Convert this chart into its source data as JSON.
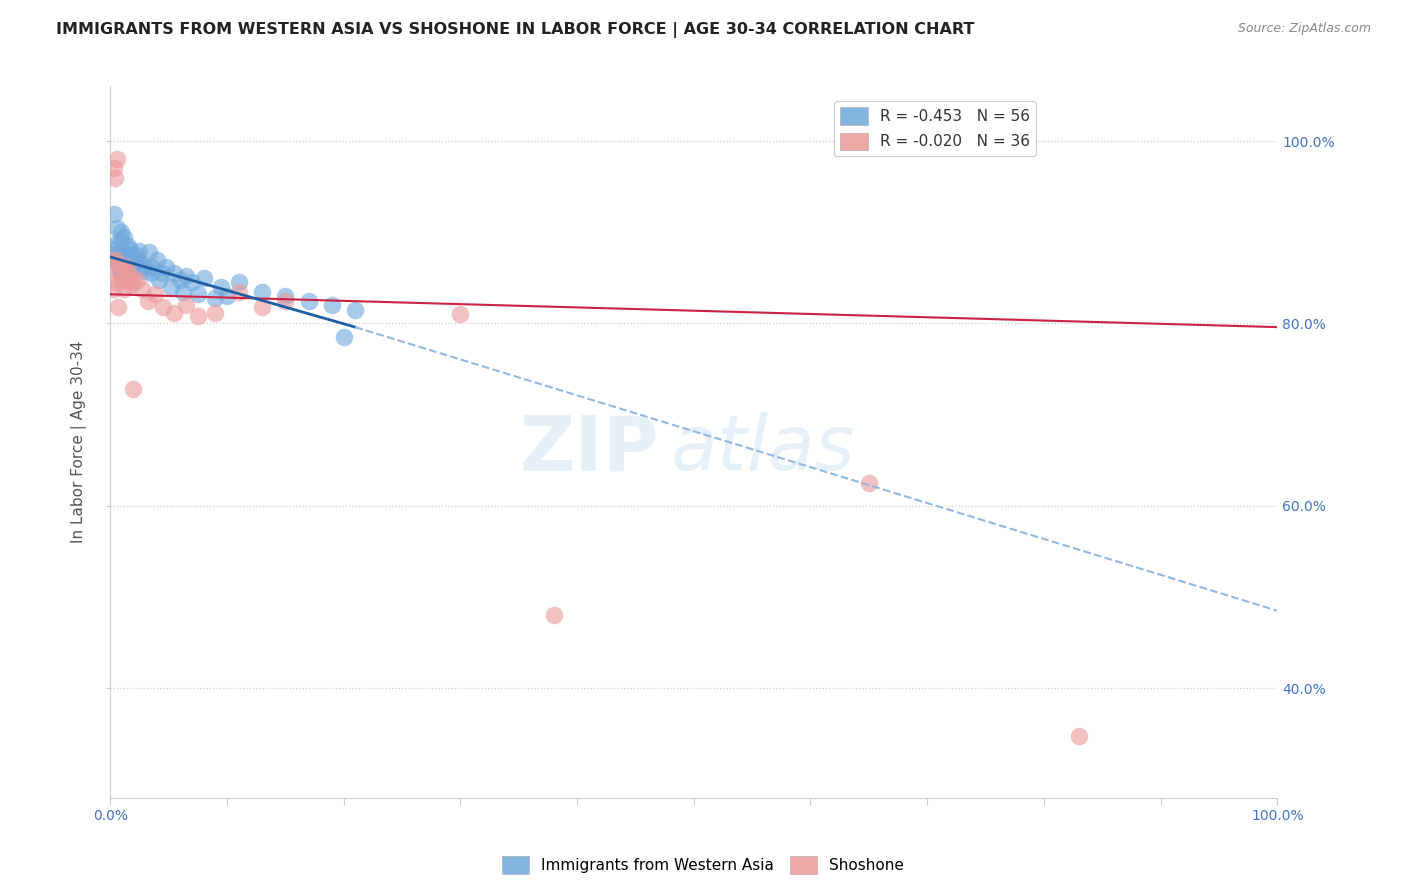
{
  "title": "IMMIGRANTS FROM WESTERN ASIA VS SHOSHONE IN LABOR FORCE | AGE 30-34 CORRELATION CHART",
  "source": "Source: ZipAtlas.com",
  "ylabel": "In Labor Force | Age 30-34",
  "xlim": [
    0.0,
    1.0
  ],
  "ylim": [
    0.28,
    1.06
  ],
  "xtick_labels": [
    "0.0%",
    "",
    "",
    "",
    "",
    "",
    "",
    "",
    "",
    "100.0%"
  ],
  "xtick_values": [
    0.0,
    0.1,
    0.2,
    0.3,
    0.4,
    0.5,
    0.6,
    0.7,
    0.8,
    1.0
  ],
  "ytick_labels_right": [
    "100.0%",
    "80.0%",
    "60.0%",
    "40.0%"
  ],
  "ytick_values": [
    1.0,
    0.8,
    0.6,
    0.4
  ],
  "blue_R": -0.453,
  "blue_N": 56,
  "pink_R": -0.02,
  "pink_N": 36,
  "blue_color": "#6fa8dc",
  "pink_color": "#ea9999",
  "trendline_blue_color": "#1f5fa6",
  "trendline_pink_color": "#cc2244",
  "trendline_blue_dashed_color": "#92b8e0",
  "watermark_zip": "ZIP",
  "watermark_atlas": "atlas",
  "blue_scatter_x": [
    0.002,
    0.003,
    0.004,
    0.005,
    0.006,
    0.007,
    0.008,
    0.009,
    0.01,
    0.011,
    0.012,
    0.013,
    0.014,
    0.015,
    0.016,
    0.017,
    0.018,
    0.019,
    0.02,
    0.022,
    0.025,
    0.027,
    0.03,
    0.033,
    0.036,
    0.04,
    0.044,
    0.048,
    0.055,
    0.06,
    0.065,
    0.07,
    0.08,
    0.095,
    0.11,
    0.13,
    0.15,
    0.17,
    0.19,
    0.21,
    0.003,
    0.006,
    0.009,
    0.012,
    0.015,
    0.018,
    0.023,
    0.028,
    0.035,
    0.042,
    0.052,
    0.062,
    0.075,
    0.09,
    0.1,
    0.2
  ],
  "blue_scatter_y": [
    0.875,
    0.882,
    0.87,
    0.868,
    0.888,
    0.876,
    0.86,
    0.892,
    0.855,
    0.878,
    0.864,
    0.87,
    0.858,
    0.865,
    0.882,
    0.875,
    0.862,
    0.87,
    0.868,
    0.875,
    0.88,
    0.865,
    0.858,
    0.878,
    0.862,
    0.87,
    0.855,
    0.862,
    0.855,
    0.848,
    0.852,
    0.845,
    0.85,
    0.84,
    0.845,
    0.835,
    0.83,
    0.825,
    0.82,
    0.815,
    0.92,
    0.905,
    0.9,
    0.895,
    0.885,
    0.875,
    0.87,
    0.862,
    0.855,
    0.848,
    0.84,
    0.835,
    0.832,
    0.828,
    0.83,
    0.785
  ],
  "pink_scatter_x": [
    0.002,
    0.003,
    0.004,
    0.005,
    0.006,
    0.007,
    0.008,
    0.009,
    0.01,
    0.012,
    0.014,
    0.016,
    0.018,
    0.02,
    0.023,
    0.027,
    0.032,
    0.038,
    0.045,
    0.055,
    0.065,
    0.075,
    0.09,
    0.11,
    0.13,
    0.15,
    0.3,
    0.38,
    0.003,
    0.005,
    0.007,
    0.011,
    0.015,
    0.02,
    0.65,
    0.83
  ],
  "pink_scatter_y": [
    0.87,
    0.97,
    0.96,
    0.87,
    0.98,
    0.865,
    0.855,
    0.848,
    0.858,
    0.838,
    0.862,
    0.855,
    0.842,
    0.845,
    0.848,
    0.838,
    0.825,
    0.832,
    0.818,
    0.812,
    0.82,
    0.808,
    0.812,
    0.835,
    0.818,
    0.825,
    0.81,
    0.48,
    0.838,
    0.845,
    0.818,
    0.862,
    0.848,
    0.728,
    0.625,
    0.348
  ],
  "blue_trendline_x0": 0.0,
  "blue_trendline_y0": 0.873,
  "blue_trendline_x1": 0.21,
  "blue_trendline_y1": 0.796,
  "blue_trendline_x2": 1.0,
  "blue_trendline_y2": 0.485,
  "pink_trendline_x0": 0.0,
  "pink_trendline_y0": 0.832,
  "pink_trendline_x1": 1.0,
  "pink_trendline_y1": 0.796
}
